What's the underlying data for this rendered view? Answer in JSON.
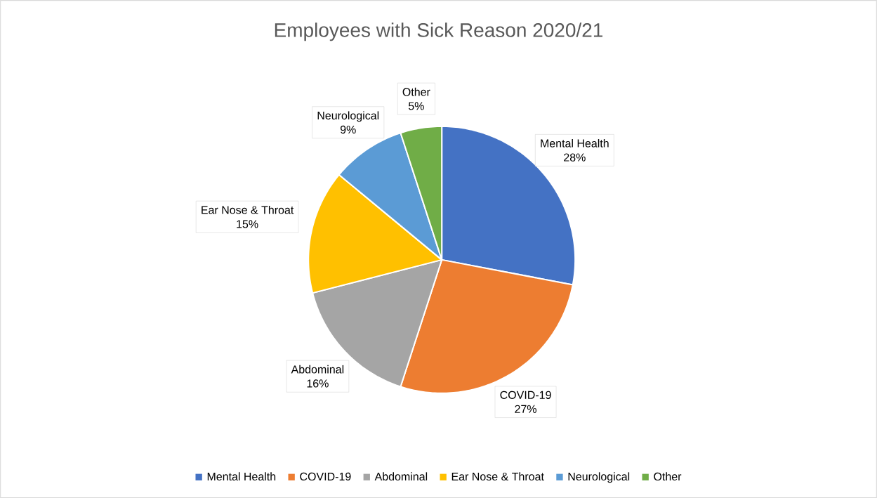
{
  "chart_data": {
    "type": "pie",
    "title": "Employees with Sick Reason 2020/21",
    "categories": [
      "Mental Health",
      "COVID-19",
      "Abdominal",
      "Ear Nose & Throat",
      "Neurological",
      "Other"
    ],
    "values": [
      28,
      27,
      16,
      15,
      9,
      5
    ],
    "value_labels": [
      "28%",
      "27%",
      "16%",
      "15%",
      "9%",
      "5%"
    ],
    "colors": [
      "#4472c4",
      "#ed7d31",
      "#a5a5a5",
      "#ffc000",
      "#5b9bd5",
      "#70ad47"
    ],
    "legend": "bottom"
  }
}
